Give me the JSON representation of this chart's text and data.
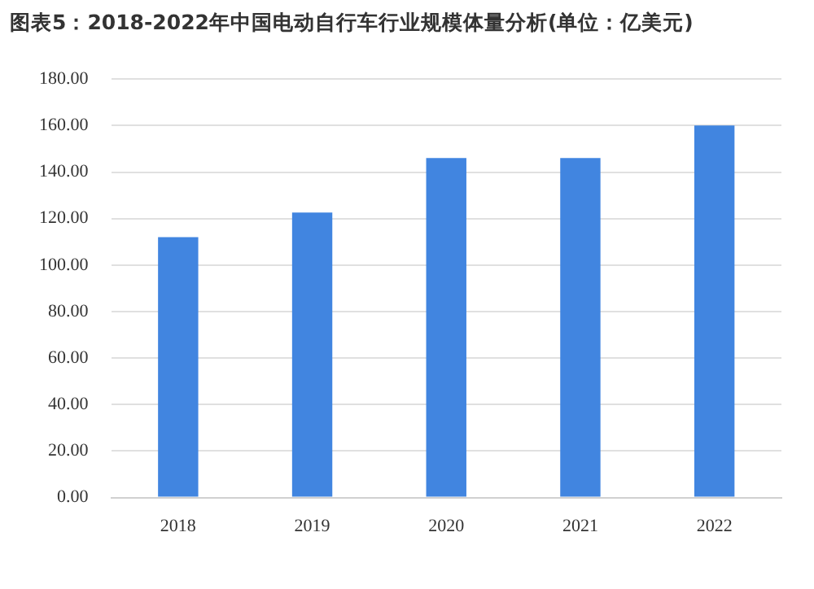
{
  "chart_data": {
    "type": "bar",
    "title": "图表5：2018-2022年中国电动自行车行业规模体量分析(单位：亿美元)",
    "categories": [
      "2018",
      "2019",
      "2020",
      "2021",
      "2022"
    ],
    "values": [
      112,
      122.6,
      146,
      146,
      160
    ],
    "color": "#4185e0",
    "ylim": [
      0,
      180
    ],
    "yticks": [
      {
        "value": 0,
        "label": "0.00"
      },
      {
        "value": 20,
        "label": "20.00"
      },
      {
        "value": 40,
        "label": "40.00"
      },
      {
        "value": 60,
        "label": "60.00"
      },
      {
        "value": 80,
        "label": "80.00"
      },
      {
        "value": 100,
        "label": "100.00"
      },
      {
        "value": 120,
        "label": "120.00"
      },
      {
        "value": 140,
        "label": "140.00"
      },
      {
        "value": 160,
        "label": "160.00"
      },
      {
        "value": 180,
        "label": "180.00"
      }
    ],
    "grid": "y",
    "legend": false
  }
}
